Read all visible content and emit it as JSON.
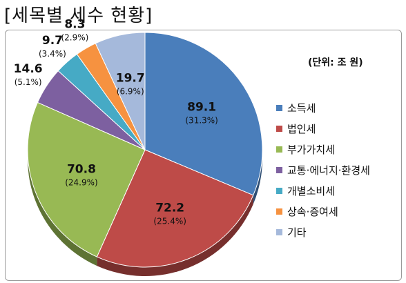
{
  "title": "[세목별 세수 현황]",
  "unit_label": "(단위: 조 원)",
  "chart_data": {
    "type": "pie",
    "title": "",
    "slices": [
      {
        "name": "소득세",
        "value": 89.1,
        "percent": "(31.3%)",
        "color": "#4A7EBB"
      },
      {
        "name": "법인세",
        "value": 72.2,
        "percent": "(25.4%)",
        "color": "#BE4B48"
      },
      {
        "name": "부가가치세",
        "value": 70.8,
        "percent": "(24.9%)",
        "color": "#98B954"
      },
      {
        "name": "교통·에너지·환경세",
        "value": 14.6,
        "percent": "(5.1%)",
        "color": "#7D60A0"
      },
      {
        "name": "개별소비세",
        "value": 9.7,
        "percent": "(3.4%)",
        "color": "#46AAC5"
      },
      {
        "name": "상속·증여세",
        "value": 8.3,
        "percent": "(2.9%)",
        "color": "#F69240"
      },
      {
        "name": "기타",
        "value": 19.7,
        "percent": "(6.9%)",
        "color": "#A5B9DB"
      }
    ],
    "legend": "right"
  }
}
